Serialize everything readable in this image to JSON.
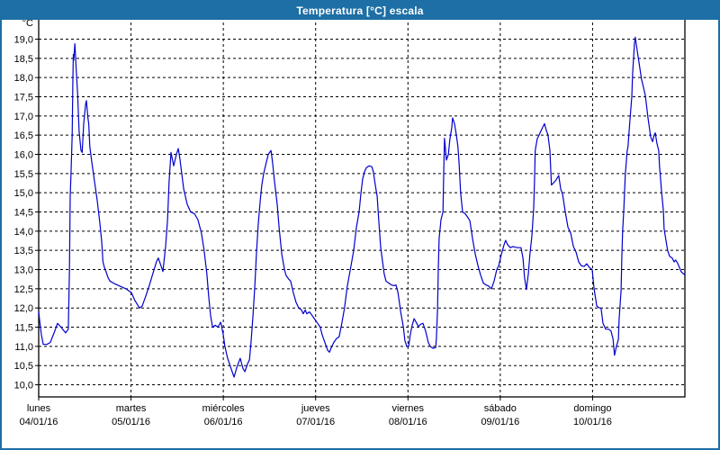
{
  "window": {
    "title": "Temperatura [°C] escala"
  },
  "colors": {
    "titlebar": "#1d6fa5",
    "window_border": "#1d6fa5",
    "plot_background": "#ffffff",
    "grid": "#000000",
    "axis": "#000000",
    "line": "#0000cc",
    "label_text": "#000000",
    "title_text": "#ffffff"
  },
  "y_axis": {
    "unit_label": "°C",
    "tick_labels": [
      "19,0",
      "18,5",
      "18,0",
      "17,5",
      "17,0",
      "16,5",
      "16,0",
      "15,5",
      "15,0",
      "14,5",
      "14,0",
      "13,5",
      "13,0",
      "12,5",
      "12,0",
      "11,5",
      "11,0",
      "10,5",
      "10,0"
    ],
    "tick_values": [
      19,
      18.5,
      18,
      17.5,
      17,
      16.5,
      16,
      15.5,
      15,
      14.5,
      14,
      13.5,
      13,
      12.5,
      12,
      11.5,
      11,
      10.5,
      10
    ]
  },
  "x_axis": {
    "days": [
      {
        "name": "lunes",
        "date": "04/01/16"
      },
      {
        "name": "martes",
        "date": "05/01/16"
      },
      {
        "name": "miércoles",
        "date": "06/01/16"
      },
      {
        "name": "jueves",
        "date": "07/01/16"
      },
      {
        "name": "viernes",
        "date": "08/01/16"
      },
      {
        "name": "sábado",
        "date": "09/01/16"
      },
      {
        "name": "domingo",
        "date": "10/01/16"
      }
    ]
  },
  "chart_data": {
    "type": "line",
    "title": "Temperatura [°C] escala",
    "xlabel": "",
    "ylabel": "°C",
    "ylim": [
      10,
      19
    ],
    "y_step": 0.5,
    "x_hours_range": [
      0,
      168
    ],
    "grid": true,
    "grid_style": "dashed",
    "legend": "none",
    "series": [
      {
        "name": "Temperatura",
        "color": "#0000cc",
        "points": [
          [
            0,
            11.9
          ],
          [
            0.2,
            11.7
          ],
          [
            0.7,
            11.3
          ],
          [
            1.2,
            11.05
          ],
          [
            2.1,
            11.05
          ],
          [
            3,
            11.1
          ],
          [
            4,
            11.35
          ],
          [
            4.9,
            11.6
          ],
          [
            5.8,
            11.5
          ],
          [
            7,
            11.35
          ],
          [
            7.7,
            11.45
          ],
          [
            8,
            13
          ],
          [
            8.2,
            14.9
          ],
          [
            8.4,
            15.5
          ],
          [
            8.7,
            16.5
          ],
          [
            8.9,
            18
          ],
          [
            9,
            18.6
          ],
          [
            9.1,
            18.45
          ],
          [
            9.4,
            18.88
          ],
          [
            9.6,
            18.5
          ],
          [
            10.1,
            17.6
          ],
          [
            10.5,
            16.6
          ],
          [
            11,
            16.1
          ],
          [
            11.3,
            16.05
          ],
          [
            11.7,
            16.8
          ],
          [
            12.2,
            17.3
          ],
          [
            12.4,
            17.4
          ],
          [
            12.8,
            16.95
          ],
          [
            13,
            16.8
          ],
          [
            13.3,
            16.2
          ],
          [
            13.8,
            15.8
          ],
          [
            14.5,
            15.3
          ],
          [
            15.2,
            14.8
          ],
          [
            15.9,
            14.2
          ],
          [
            16.4,
            13.7
          ],
          [
            16.7,
            13.2
          ],
          [
            17.1,
            13.05
          ],
          [
            17.5,
            12.95
          ],
          [
            18,
            12.8
          ],
          [
            18.5,
            12.7
          ],
          [
            19.4,
            12.65
          ],
          [
            20.4,
            12.6
          ],
          [
            21.5,
            12.55
          ],
          [
            22.7,
            12.5
          ],
          [
            23.4,
            12.45
          ],
          [
            24.1,
            12.4
          ],
          [
            25,
            12.2
          ],
          [
            26.2,
            12
          ],
          [
            26.9,
            12.05
          ],
          [
            27.8,
            12.3
          ],
          [
            28.8,
            12.6
          ],
          [
            29.7,
            12.9
          ],
          [
            30.6,
            13.2
          ],
          [
            31.1,
            13.3
          ],
          [
            31.8,
            13.1
          ],
          [
            32.3,
            12.95
          ],
          [
            33,
            13.6
          ],
          [
            33.5,
            14.3
          ],
          [
            33.9,
            15.3
          ],
          [
            34.4,
            16.05
          ],
          [
            35.1,
            15.7
          ],
          [
            35.8,
            16
          ],
          [
            36.3,
            16.15
          ],
          [
            36.7,
            15.9
          ],
          [
            37.7,
            15.1
          ],
          [
            38.6,
            14.7
          ],
          [
            39.5,
            14.5
          ],
          [
            40.5,
            14.45
          ],
          [
            41.4,
            14.3
          ],
          [
            42.3,
            13.95
          ],
          [
            43,
            13.5
          ],
          [
            43.7,
            12.9
          ],
          [
            44.2,
            12.3
          ],
          [
            44.7,
            11.8
          ],
          [
            45.2,
            11.5
          ],
          [
            45.9,
            11.55
          ],
          [
            46.6,
            11.5
          ],
          [
            47.3,
            11.63
          ],
          [
            47.5,
            11.55
          ],
          [
            48,
            11.3
          ],
          [
            48.4,
            11
          ],
          [
            49.1,
            10.7
          ],
          [
            50.1,
            10.4
          ],
          [
            50.8,
            10.2
          ],
          [
            51.5,
            10.45
          ],
          [
            52.4,
            10.69
          ],
          [
            53.1,
            10.43
          ],
          [
            53.6,
            10.34
          ],
          [
            54.3,
            10.55
          ],
          [
            54.8,
            10.65
          ],
          [
            55.2,
            11.1
          ],
          [
            55.7,
            11.8
          ],
          [
            56.2,
            12.6
          ],
          [
            56.6,
            13.4
          ],
          [
            57.1,
            14.2
          ],
          [
            57.6,
            14.8
          ],
          [
            58,
            15.2
          ],
          [
            58.5,
            15.5
          ],
          [
            59.2,
            15.8
          ],
          [
            59.7,
            16
          ],
          [
            60.4,
            16.1
          ],
          [
            60.8,
            15.8
          ],
          [
            61.3,
            15.3
          ],
          [
            62,
            14.7
          ],
          [
            62.5,
            14.1
          ],
          [
            63.2,
            13.4
          ],
          [
            63.9,
            13
          ],
          [
            64.3,
            12.85
          ],
          [
            65,
            12.75
          ],
          [
            65.5,
            12.7
          ],
          [
            66.2,
            12.4
          ],
          [
            66.9,
            12.15
          ],
          [
            67.6,
            12
          ],
          [
            68.3,
            11.95
          ],
          [
            68.8,
            11.85
          ],
          [
            69.3,
            11.95
          ],
          [
            69.7,
            11.85
          ],
          [
            70.4,
            11.9
          ],
          [
            71.1,
            11.8
          ],
          [
            71.8,
            11.7
          ],
          [
            72.5,
            11.6
          ],
          [
            73.2,
            11.5
          ],
          [
            73.7,
            11.3
          ],
          [
            74.4,
            11.1
          ],
          [
            75.1,
            10.9
          ],
          [
            75.6,
            10.85
          ],
          [
            76,
            10.95
          ],
          [
            76.7,
            11.1
          ],
          [
            77.4,
            11.2
          ],
          [
            78.1,
            11.25
          ],
          [
            78.8,
            11.6
          ],
          [
            79.5,
            12
          ],
          [
            80.2,
            12.55
          ],
          [
            81.2,
            13.1
          ],
          [
            81.9,
            13.5
          ],
          [
            82.6,
            14.1
          ],
          [
            83.3,
            14.5
          ],
          [
            83.8,
            15
          ],
          [
            84.2,
            15.35
          ],
          [
            84.7,
            15.55
          ],
          [
            85.2,
            15.65
          ],
          [
            85.9,
            15.7
          ],
          [
            86.6,
            15.68
          ],
          [
            87,
            15.55
          ],
          [
            87.5,
            15.2
          ],
          [
            88,
            14.9
          ],
          [
            88.4,
            14.3
          ],
          [
            88.9,
            13.6
          ],
          [
            89.4,
            13.2
          ],
          [
            89.8,
            12.9
          ],
          [
            90.3,
            12.7
          ],
          [
            91,
            12.65
          ],
          [
            91.7,
            12.6
          ],
          [
            92.4,
            12.58
          ],
          [
            92.9,
            12.6
          ],
          [
            93.4,
            12.4
          ],
          [
            94.1,
            11.9
          ],
          [
            94.8,
            11.5
          ],
          [
            95.2,
            11.15
          ],
          [
            95.7,
            11
          ],
          [
            96.2,
            11
          ],
          [
            96.6,
            11.3
          ],
          [
            97.1,
            11.55
          ],
          [
            97.6,
            11.72
          ],
          [
            98.3,
            11.6
          ],
          [
            98.7,
            11.52
          ],
          [
            99.4,
            11.58
          ],
          [
            99.9,
            11.6
          ],
          [
            100.6,
            11.4
          ],
          [
            101.3,
            11.1
          ],
          [
            101.8,
            11
          ],
          [
            102.5,
            10.95
          ],
          [
            103.2,
            10.97
          ],
          [
            103.4,
            11.2
          ],
          [
            103.7,
            12
          ],
          [
            103.9,
            13
          ],
          [
            104.1,
            13.8
          ],
          [
            104.6,
            14.3
          ],
          [
            105.1,
            14.5
          ],
          [
            105.3,
            15.5
          ],
          [
            105.5,
            16.42
          ],
          [
            106,
            15.85
          ],
          [
            106.5,
            16
          ],
          [
            106.9,
            16.4
          ],
          [
            107.4,
            16.7
          ],
          [
            107.6,
            16.95
          ],
          [
            108.1,
            16.8
          ],
          [
            108.6,
            16.5
          ],
          [
            109,
            16.2
          ],
          [
            109.3,
            15.77
          ],
          [
            109.7,
            15
          ],
          [
            110.2,
            14.5
          ],
          [
            110.9,
            14.45
          ],
          [
            111.6,
            14.35
          ],
          [
            112.1,
            14.27
          ],
          [
            112.8,
            13.8
          ],
          [
            113.5,
            13.4
          ],
          [
            114.2,
            13.1
          ],
          [
            114.9,
            12.85
          ],
          [
            115.6,
            12.65
          ],
          [
            116.3,
            12.6
          ],
          [
            117,
            12.57
          ],
          [
            117.7,
            12.5
          ],
          [
            118.4,
            12.7
          ],
          [
            119.1,
            13
          ],
          [
            119.6,
            13.1
          ],
          [
            120.3,
            13.4
          ],
          [
            121,
            13.65
          ],
          [
            121.4,
            13.76
          ],
          [
            121.9,
            13.65
          ],
          [
            122.6,
            13.57
          ],
          [
            123.3,
            13.6
          ],
          [
            124,
            13.58
          ],
          [
            124.7,
            13.57
          ],
          [
            125.4,
            13.57
          ],
          [
            125.9,
            13.3
          ],
          [
            126.3,
            12.8
          ],
          [
            126.8,
            12.48
          ],
          [
            127.3,
            12.9
          ],
          [
            127.7,
            13.4
          ],
          [
            128.2,
            13.85
          ],
          [
            128.7,
            14.6
          ],
          [
            128.9,
            15.3
          ],
          [
            129.1,
            16.1
          ],
          [
            129.6,
            16.4
          ],
          [
            130.3,
            16.55
          ],
          [
            131,
            16.7
          ],
          [
            131.5,
            16.8
          ],
          [
            131.9,
            16.65
          ],
          [
            132.4,
            16.5
          ],
          [
            132.9,
            16.1
          ],
          [
            133.3,
            15.2
          ],
          [
            133.8,
            15.25
          ],
          [
            134.5,
            15.33
          ],
          [
            135.2,
            15.45
          ],
          [
            135.7,
            15.1
          ],
          [
            136.2,
            14.96
          ],
          [
            136.9,
            14.5
          ],
          [
            137.6,
            14.1
          ],
          [
            138.3,
            13.95
          ],
          [
            139,
            13.6
          ],
          [
            139.7,
            13.45
          ],
          [
            140.4,
            13.2
          ],
          [
            141.1,
            13.1
          ],
          [
            141.8,
            13.08
          ],
          [
            142.5,
            13.15
          ],
          [
            143.2,
            13.05
          ],
          [
            143.9,
            13
          ],
          [
            144.4,
            12.5
          ],
          [
            145.1,
            12.05
          ],
          [
            145.8,
            12
          ],
          [
            146.2,
            12
          ],
          [
            146.7,
            11.6
          ],
          [
            147.4,
            11.45
          ],
          [
            148.1,
            11.45
          ],
          [
            148.8,
            11.4
          ],
          [
            149.3,
            11.2
          ],
          [
            149.7,
            10.77
          ],
          [
            150.2,
            11
          ],
          [
            150.7,
            11.18
          ],
          [
            150.9,
            11.7
          ],
          [
            151.4,
            12.46
          ],
          [
            151.6,
            13.3
          ],
          [
            151.8,
            14
          ],
          [
            152.1,
            14.5
          ],
          [
            152.5,
            15.48
          ],
          [
            153,
            16.1
          ],
          [
            153.2,
            16.18
          ],
          [
            153.7,
            16.88
          ],
          [
            154.2,
            17.5
          ],
          [
            154.4,
            18.1
          ],
          [
            154.9,
            18.9
          ],
          [
            155.1,
            19.05
          ],
          [
            155.6,
            18.7
          ],
          [
            156,
            18.44
          ],
          [
            156.7,
            17.97
          ],
          [
            157.7,
            17.54
          ],
          [
            158.4,
            16.95
          ],
          [
            159.1,
            16.45
          ],
          [
            159.6,
            16.33
          ],
          [
            160,
            16.5
          ],
          [
            160.3,
            16.56
          ],
          [
            160.7,
            16.3
          ],
          [
            161.2,
            16.1
          ],
          [
            161.4,
            15.7
          ],
          [
            161.9,
            15.08
          ],
          [
            162.4,
            14.53
          ],
          [
            162.6,
            14.06
          ],
          [
            163.1,
            13.74
          ],
          [
            163.5,
            13.5
          ],
          [
            164,
            13.35
          ],
          [
            164.7,
            13.3
          ],
          [
            165.2,
            13.2
          ],
          [
            165.6,
            13.25
          ],
          [
            166.1,
            13.17
          ],
          [
            166.6,
            13.05
          ],
          [
            167,
            12.95
          ],
          [
            167.5,
            12.9
          ],
          [
            167.9,
            12.87
          ]
        ]
      }
    ]
  }
}
